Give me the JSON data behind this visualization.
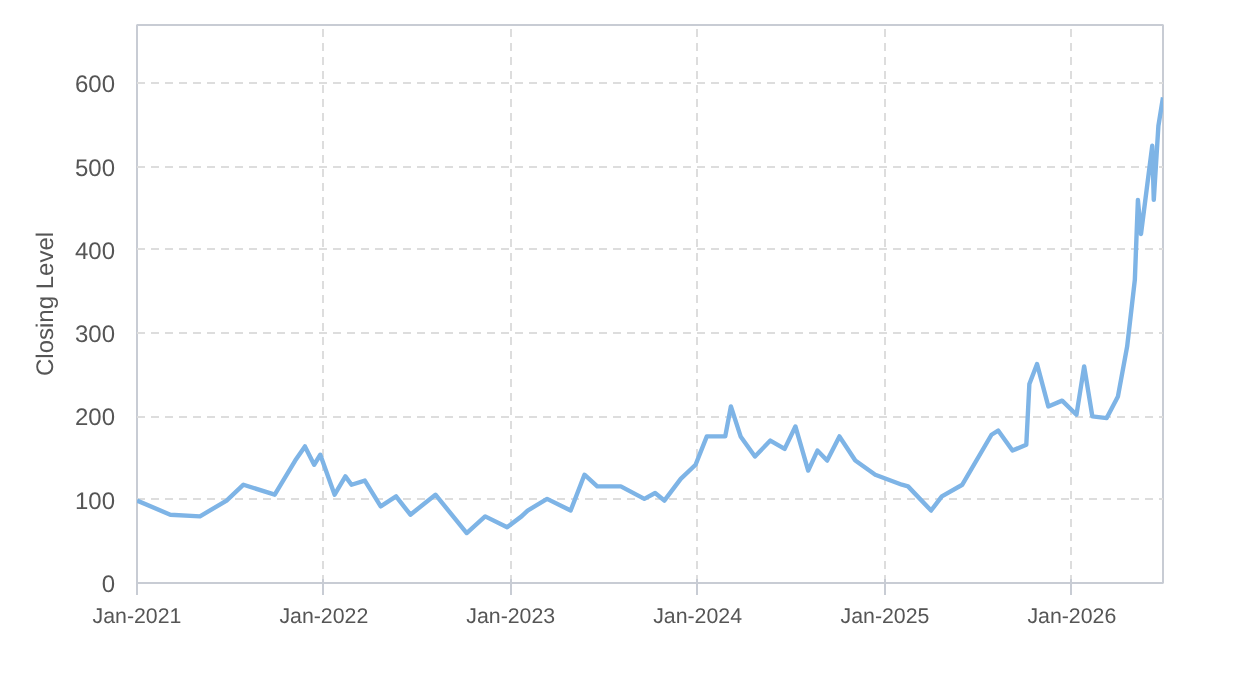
{
  "chart_data": {
    "type": "line",
    "ylabel": "Closing Level",
    "x": [
      "2021-01-01",
      "2021-03-07",
      "2021-05-04",
      "2021-06-25",
      "2021-07-28",
      "2021-09-27",
      "2021-11-06",
      "2021-11-25",
      "2021-12-13",
      "2021-12-25",
      "2022-01-22",
      "2022-02-12",
      "2022-02-24",
      "2022-03-22",
      "2022-04-22",
      "2022-05-22",
      "2022-06-19",
      "2022-08-07",
      "2022-10-07",
      "2022-11-12",
      "2022-12-25",
      "2023-01-22",
      "2023-02-03",
      "2023-03-13",
      "2023-04-28",
      "2023-05-25",
      "2023-06-19",
      "2023-08-04",
      "2023-09-19",
      "2023-10-10",
      "2023-10-28",
      "2023-11-29",
      "2023-12-28",
      "2024-01-19",
      "2024-02-24",
      "2024-03-06",
      "2024-03-25",
      "2024-04-22",
      "2024-05-22",
      "2024-06-19",
      "2024-07-10",
      "2024-08-04",
      "2024-08-22",
      "2024-09-10",
      "2024-10-04",
      "2024-11-04",
      "2024-12-13",
      "2025-02-03",
      "2025-02-15",
      "2025-04-01",
      "2025-04-22",
      "2025-06-01",
      "2025-07-28",
      "2025-08-10",
      "2025-09-07",
      "2025-10-04",
      "2025-10-10",
      "2025-10-25",
      "2025-11-16",
      "2025-12-13",
      "2026-01-10",
      "2026-01-25",
      "2026-02-10",
      "2026-03-10",
      "2026-04-01",
      "2026-04-19",
      "2026-05-04",
      "2026-05-10",
      "2026-05-16",
      "2026-06-07",
      "2026-06-10",
      "2026-06-19",
      "2026-06-28"
    ],
    "series": [
      {
        "color": "#7eb4e6",
        "values": [
          99,
          82,
          80,
          99,
          118,
          106,
          147,
          164,
          142,
          154,
          106,
          128,
          118,
          123,
          92,
          104,
          82,
          106,
          60,
          80,
          67,
          80,
          87,
          101,
          87,
          130,
          116,
          116,
          101,
          108,
          99,
          125,
          142,
          176,
          176,
          212,
          176,
          152,
          171,
          161,
          188,
          135,
          159,
          147,
          176,
          147,
          130,
          118,
          116,
          87,
          104,
          118,
          178,
          183,
          159,
          166,
          239,
          263,
          212,
          219,
          202,
          260,
          200,
          198,
          224,
          284,
          364,
          460,
          419,
          525,
          460,
          549,
          583
        ]
      }
    ],
    "xlim": [
      "2021-01-01",
      "2026-06-28"
    ],
    "xticks": [
      {
        "value": "2021-01-01",
        "label": "Jan-2021"
      },
      {
        "value": "2022-01-01",
        "label": "Jan-2022"
      },
      {
        "value": "2023-01-01",
        "label": "Jan-2023"
      },
      {
        "value": "2024-01-01",
        "label": "Jan-2024"
      },
      {
        "value": "2025-01-01",
        "label": "Jan-2025"
      },
      {
        "value": "2026-01-01",
        "label": "Jan-2026"
      }
    ],
    "ylim": [
      0,
      670
    ],
    "yticks": [
      0,
      100,
      200,
      300,
      400,
      500,
      600
    ],
    "grid": true,
    "line_style": "solid",
    "marker": "none"
  }
}
